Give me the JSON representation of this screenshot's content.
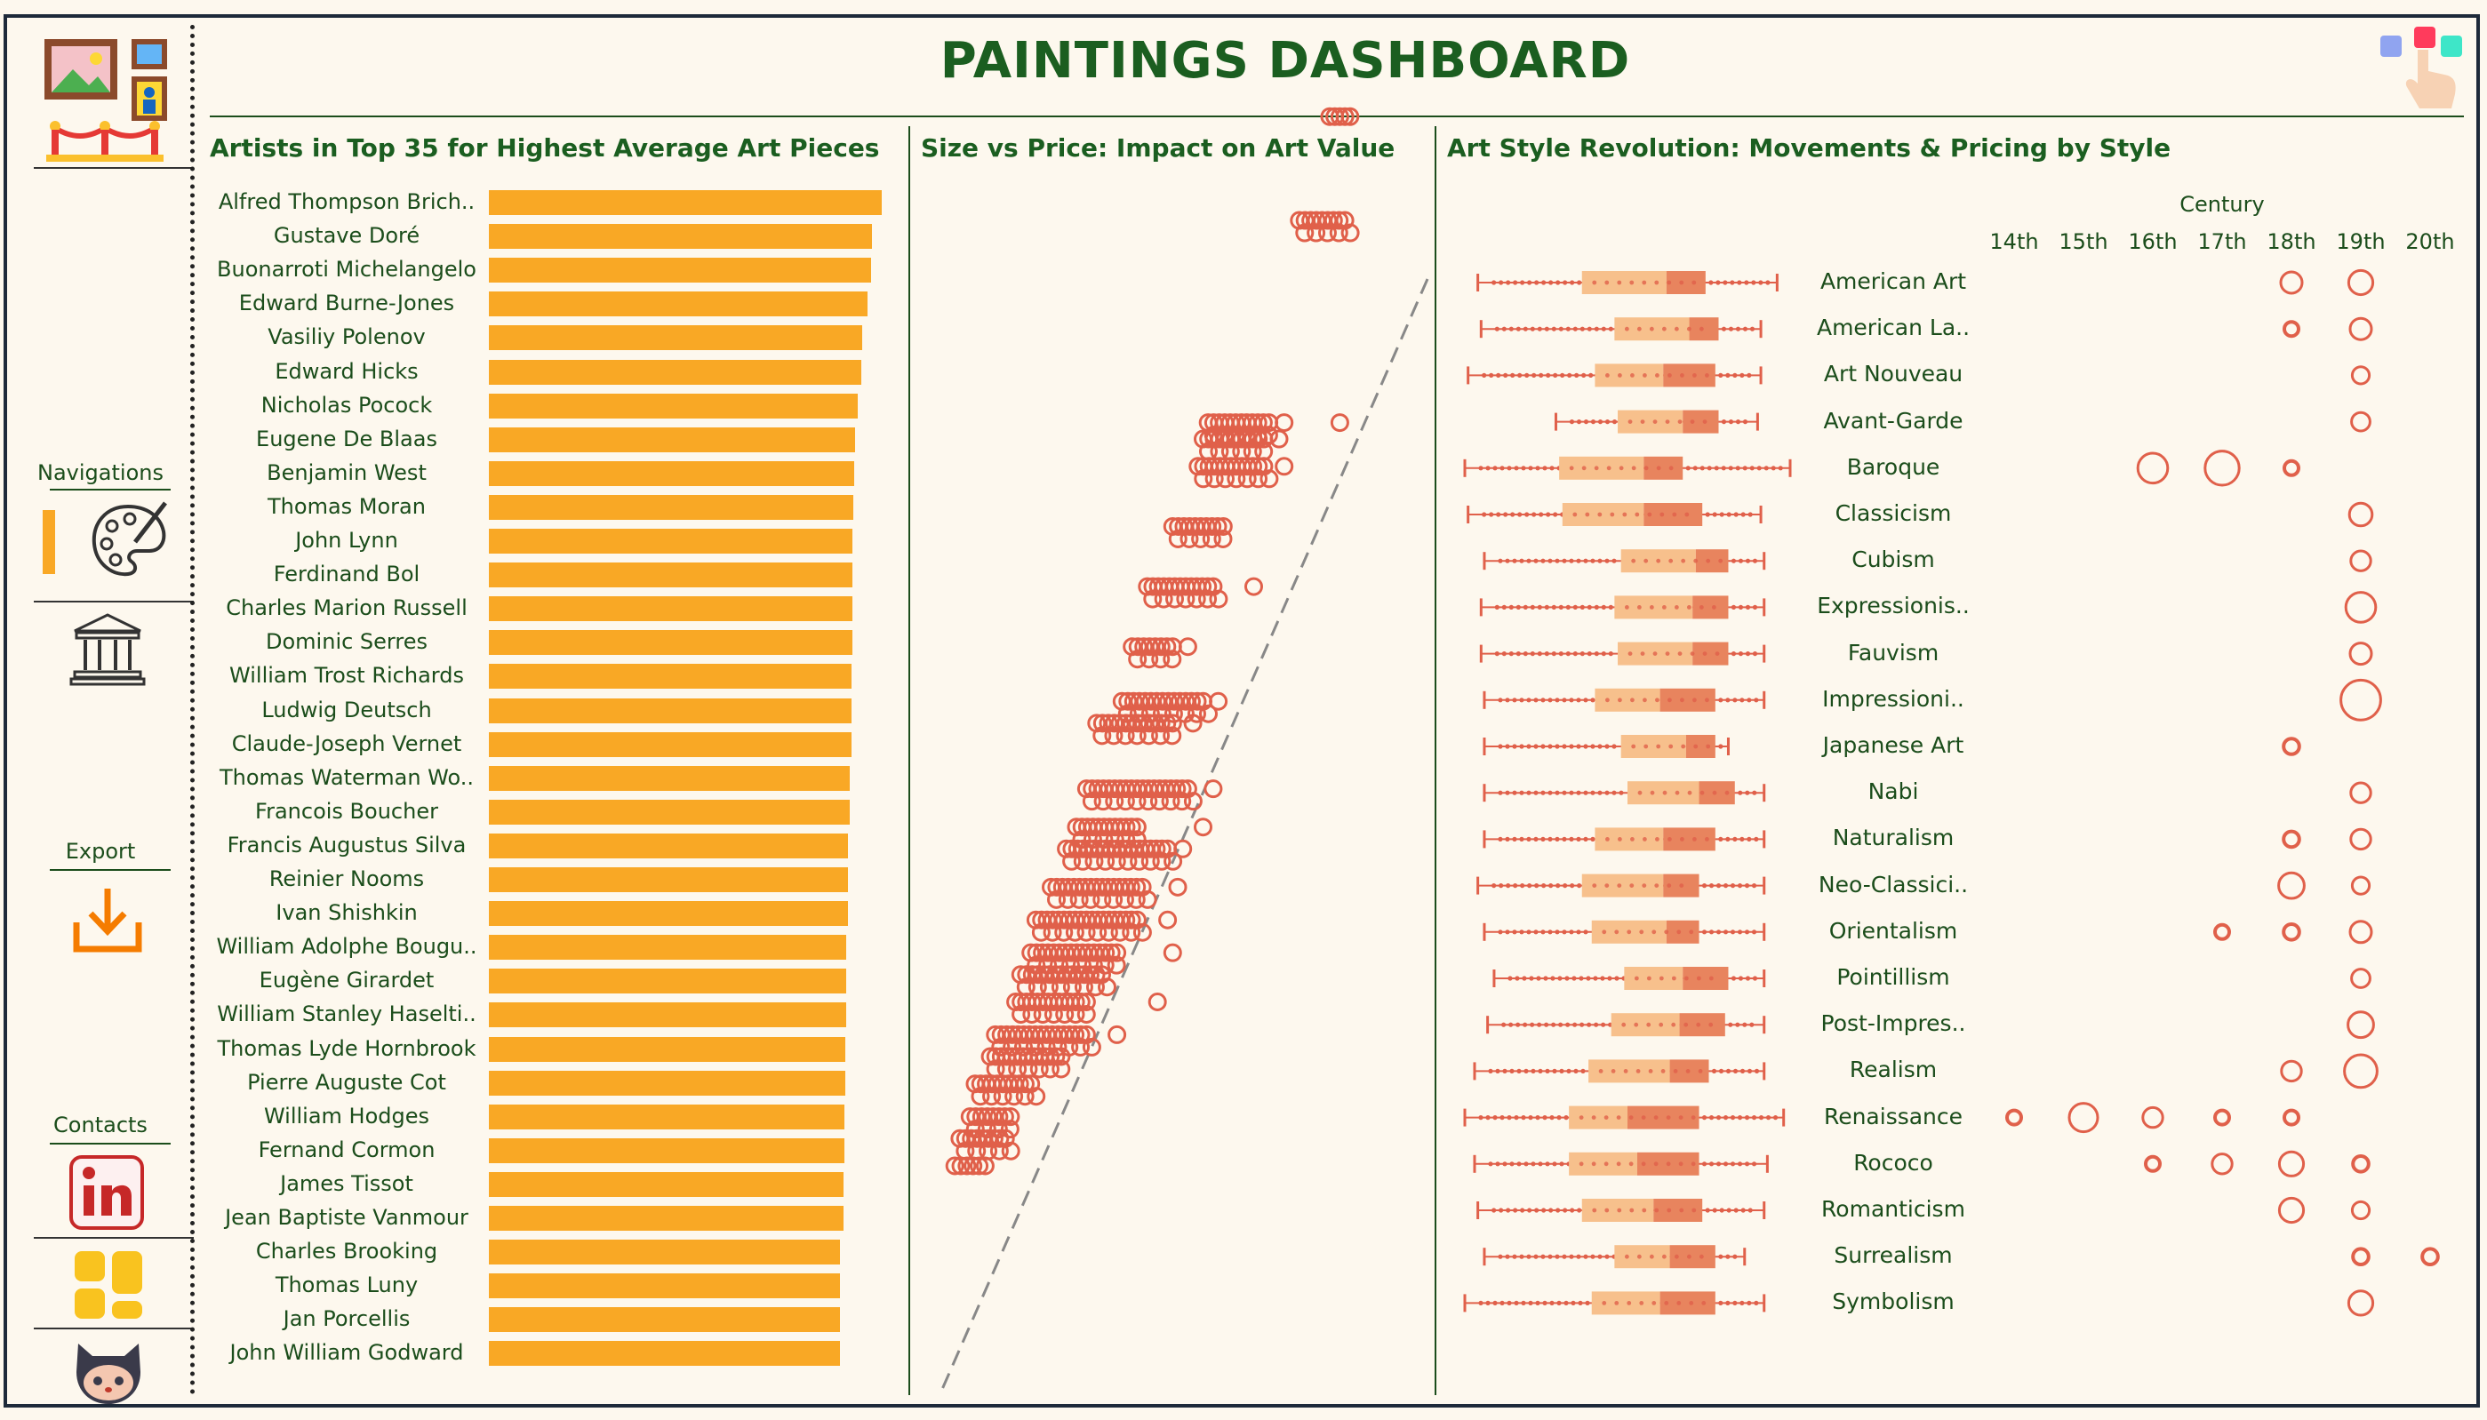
{
  "header": {
    "title": "PAINTINGS DASHBOARD"
  },
  "sidebar": {
    "navigations_label": "Navigations",
    "export_label": "Export",
    "contacts_label": "Contacts"
  },
  "panels": {
    "artists_title": "Artists in Top 35 for Highest Average Art Pieces",
    "scatter_title": "Size vs Price: Impact on Art Value",
    "styles_title": "Art Style Revolution: Movements & Pricing by Style",
    "century_header": "Century"
  },
  "colors": {
    "accent": "#f9a825",
    "marks": "#e0604a",
    "title": "#1b5e20",
    "background": "#fdf8ee"
  },
  "chart_data": [
    {
      "type": "bar",
      "orientation": "horizontal",
      "title": "Artists in Top 35 for Highest Average Art Pieces",
      "categories": [
        "Alfred Thompson Brich..",
        "Gustave Doré",
        "Buonarroti Michelangelo",
        "Edward Burne-Jones",
        "Vasiliy Polenov",
        "Edward Hicks",
        "Nicholas Pocock",
        "Eugene De Blaas",
        "Benjamin West",
        "Thomas Moran",
        "John Lynn",
        "Ferdinand Bol",
        "Charles Marion Russell",
        "Dominic Serres",
        "William Trost Richards",
        "Ludwig Deutsch",
        "Claude-Joseph Vernet",
        "Thomas Waterman Wo..",
        "Francois Boucher",
        "Francis Augustus Silva",
        "Reinier Nooms",
        "Ivan Shishkin",
        "William Adolphe Bougu..",
        "Eugène Girardet",
        "William Stanley Haselti..",
        "Thomas Lyde Hornbrook",
        "Pierre Auguste Cot",
        "William Hodges",
        "Fernand Cormon",
        "James Tissot",
        "Jean Baptiste Vanmour",
        "Charles Brooking",
        "Thomas Luny",
        "Jan Porcellis",
        "John William Godward"
      ],
      "values": [
        100,
        97.6,
        97.2,
        96.4,
        95,
        94.8,
        94,
        93.2,
        93,
        92.8,
        92.6,
        92.6,
        92.6,
        92.6,
        92.2,
        92.2,
        92.2,
        91.8,
        91.8,
        91.4,
        91.4,
        91.4,
        91,
        91,
        91,
        90.8,
        90.8,
        90.6,
        90.6,
        90.2,
        90.2,
        89.4,
        89.4,
        89.4,
        89.4
      ]
    },
    {
      "type": "scatter",
      "title": "Size vs Price: Impact on Art Value",
      "trendline": true,
      "clusters": [
        {
          "y": 0.04,
          "xmin": 0.8,
          "xmax": 0.84,
          "outliers": []
        },
        {
          "y": 0.135,
          "xmin": 0.74,
          "xmax": 0.83,
          "outliers": []
        },
        {
          "y": 0.32,
          "xmin": 0.56,
          "xmax": 0.68,
          "outliers": [
            0.71,
            0.82
          ]
        },
        {
          "y": 0.335,
          "xmin": 0.55,
          "xmax": 0.67,
          "outliers": [
            0.7
          ]
        },
        {
          "y": 0.36,
          "xmin": 0.54,
          "xmax": 0.67,
          "outliers": [
            0.71
          ]
        },
        {
          "y": 0.415,
          "xmin": 0.49,
          "xmax": 0.59,
          "outliers": []
        },
        {
          "y": 0.47,
          "xmin": 0.44,
          "xmax": 0.57,
          "outliers": [
            0.65
          ]
        },
        {
          "y": 0.525,
          "xmin": 0.41,
          "xmax": 0.49,
          "outliers": [
            0.52
          ]
        },
        {
          "y": 0.575,
          "xmin": 0.39,
          "xmax": 0.55,
          "outliers": [
            0.58
          ]
        },
        {
          "y": 0.595,
          "xmin": 0.34,
          "xmax": 0.49,
          "outliers": [
            0.53
          ]
        },
        {
          "y": 0.655,
          "xmin": 0.32,
          "xmax": 0.52,
          "outliers": [
            0.57
          ]
        },
        {
          "y": 0.69,
          "xmin": 0.3,
          "xmax": 0.42,
          "outliers": [
            0.55
          ]
        },
        {
          "y": 0.71,
          "xmin": 0.28,
          "xmax": 0.48,
          "outliers": [
            0.51
          ]
        },
        {
          "y": 0.745,
          "xmin": 0.25,
          "xmax": 0.43,
          "outliers": [
            0.5
          ]
        },
        {
          "y": 0.775,
          "xmin": 0.22,
          "xmax": 0.42,
          "outliers": [
            0.48
          ]
        },
        {
          "y": 0.805,
          "xmin": 0.21,
          "xmax": 0.38,
          "outliers": [
            0.49
          ]
        },
        {
          "y": 0.825,
          "xmin": 0.19,
          "xmax": 0.35,
          "outliers": []
        },
        {
          "y": 0.85,
          "xmin": 0.18,
          "xmax": 0.32,
          "outliers": [
            0.46
          ]
        },
        {
          "y": 0.88,
          "xmin": 0.14,
          "xmax": 0.32,
          "outliers": [
            0.38
          ]
        },
        {
          "y": 0.9,
          "xmin": 0.13,
          "xmax": 0.27,
          "outliers": []
        },
        {
          "y": 0.925,
          "xmin": 0.1,
          "xmax": 0.21,
          "outliers": []
        },
        {
          "y": 0.955,
          "xmin": 0.09,
          "xmax": 0.17,
          "outliers": []
        },
        {
          "y": 0.975,
          "xmin": 0.07,
          "xmax": 0.16,
          "outliers": []
        },
        {
          "y": 1.0,
          "xmin": 0.06,
          "xmax": 0.12,
          "outliers": []
        }
      ]
    },
    {
      "type": "box-and-bubble",
      "title": "Art Style Revolution: Movements & Pricing by Style",
      "centuries": [
        "14th",
        "15th",
        "16th",
        "17th",
        "18th",
        "19th",
        "20th"
      ],
      "styles": [
        {
          "name": "American Art",
          "box": [
            0.04,
            0.36,
            0.62,
            0.74,
            0.96
          ],
          "bubbles": {
            "18th": 1.0,
            "19th": 1.2
          }
        },
        {
          "name": "American La..",
          "box": [
            0.05,
            0.46,
            0.69,
            0.78,
            0.91
          ],
          "bubbles": {
            "18th": 0.5,
            "19th": 1.0
          }
        },
        {
          "name": "Art Nouveau",
          "box": [
            0.01,
            0.4,
            0.61,
            0.77,
            0.91
          ],
          "bubbles": {
            "19th": 0.7
          }
        },
        {
          "name": "Avant-Garde",
          "box": [
            0.28,
            0.47,
            0.67,
            0.78,
            0.9
          ],
          "bubbles": {
            "19th": 0.8
          }
        },
        {
          "name": "Baroque",
          "box": [
            0.0,
            0.29,
            0.55,
            0.67,
            1.0
          ],
          "bubbles": {
            "16th": 1.6,
            "17th": 1.9,
            "18th": 0.5
          }
        },
        {
          "name": "Classicism",
          "box": [
            0.01,
            0.3,
            0.55,
            0.73,
            0.91
          ],
          "bubbles": {
            "19th": 1.1
          }
        },
        {
          "name": "Cubism",
          "box": [
            0.06,
            0.48,
            0.71,
            0.81,
            0.92
          ],
          "bubbles": {
            "19th": 0.9
          }
        },
        {
          "name": "Expressionis..",
          "box": [
            0.05,
            0.46,
            0.7,
            0.81,
            0.92
          ],
          "bubbles": {
            "19th": 1.6
          }
        },
        {
          "name": "Fauvism",
          "box": [
            0.05,
            0.47,
            0.7,
            0.81,
            0.92
          ],
          "bubbles": {
            "19th": 1.0
          }
        },
        {
          "name": "Impressioni..",
          "box": [
            0.06,
            0.4,
            0.6,
            0.77,
            0.92
          ],
          "bubbles": {
            "19th": 2.3
          }
        },
        {
          "name": "Japanese Art",
          "box": [
            0.06,
            0.48,
            0.68,
            0.77,
            0.81
          ],
          "bubbles": {
            "18th": 0.6
          }
        },
        {
          "name": "Nabi",
          "box": [
            0.06,
            0.5,
            0.72,
            0.83,
            0.92
          ],
          "bubbles": {
            "19th": 0.9
          }
        },
        {
          "name": "Naturalism",
          "box": [
            0.06,
            0.4,
            0.61,
            0.77,
            0.92
          ],
          "bubbles": {
            "18th": 0.6,
            "19th": 0.9
          }
        },
        {
          "name": "Neo-Classici..",
          "box": [
            0.04,
            0.36,
            0.61,
            0.72,
            0.92
          ],
          "bubbles": {
            "18th": 1.3,
            "19th": 0.7
          }
        },
        {
          "name": "Orientalism",
          "box": [
            0.06,
            0.39,
            0.62,
            0.72,
            0.92
          ],
          "bubbles": {
            "17th": 0.5,
            "18th": 0.6,
            "19th": 1.0
          }
        },
        {
          "name": "Pointillism",
          "box": [
            0.09,
            0.49,
            0.67,
            0.81,
            0.92
          ],
          "bubbles": {
            "19th": 0.8
          }
        },
        {
          "name": "Post-Impres..",
          "box": [
            0.07,
            0.45,
            0.66,
            0.8,
            0.92
          ],
          "bubbles": {
            "19th": 1.3
          }
        },
        {
          "name": "Realism",
          "box": [
            0.03,
            0.38,
            0.63,
            0.75,
            0.92
          ],
          "bubbles": {
            "18th": 0.9,
            "19th": 1.8
          }
        },
        {
          "name": "Renaissance",
          "box": [
            0.0,
            0.32,
            0.5,
            0.72,
            0.98
          ],
          "bubbles": {
            "14th": 0.5,
            "15th": 1.5,
            "16th": 0.9,
            "17th": 0.5,
            "18th": 0.5
          }
        },
        {
          "name": "Rococo",
          "box": [
            0.03,
            0.32,
            0.53,
            0.72,
            0.93
          ],
          "bubbles": {
            "16th": 0.5,
            "17th": 0.9,
            "18th": 1.2,
            "19th": 0.6
          }
        },
        {
          "name": "Romanticism",
          "box": [
            0.04,
            0.36,
            0.58,
            0.73,
            0.92
          ],
          "bubbles": {
            "18th": 1.2,
            "19th": 0.7
          }
        },
        {
          "name": "Surrealism",
          "box": [
            0.06,
            0.46,
            0.63,
            0.77,
            0.86
          ],
          "bubbles": {
            "19th": 0.6,
            "20th": 0.6
          }
        },
        {
          "name": "Symbolism",
          "box": [
            0.0,
            0.39,
            0.6,
            0.77,
            0.92
          ],
          "bubbles": {
            "19th": 1.2
          }
        }
      ]
    }
  ]
}
